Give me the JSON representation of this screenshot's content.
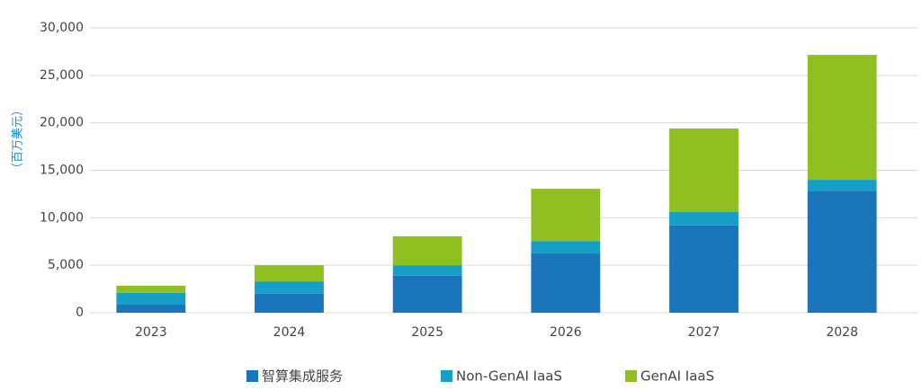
{
  "chart_data": {
    "type": "stacked_bar",
    "y_label": "（百万美元）",
    "categories": [
      "2023",
      "2024",
      "2025",
      "2026",
      "2027",
      "2028"
    ],
    "series": [
      {
        "name": "智算集成服务",
        "color": "#1b75bb",
        "values": [
          850,
          2000,
          3900,
          6250,
          9200,
          12850
        ]
      },
      {
        "name": "Non-GenAI IaaS",
        "color": "#159fc6",
        "values": [
          1250,
          1300,
          1100,
          1300,
          1400,
          1150
        ]
      },
      {
        "name": "GenAI IaaS",
        "color": "#8fbf21",
        "values": [
          750,
          1700,
          3050,
          5500,
          8800,
          13150
        ]
      }
    ],
    "ylim": [
      0,
      30000
    ],
    "yticks": [
      {
        "value": 0,
        "label": "0"
      },
      {
        "value": 5000,
        "label": "5,000"
      },
      {
        "value": 10000,
        "label": "10,000"
      },
      {
        "value": 15000,
        "label": "15,000"
      },
      {
        "value": 20000,
        "label": "20,000"
      },
      {
        "value": 25000,
        "label": "25,000"
      },
      {
        "value": 30000,
        "label": "30,000"
      }
    ],
    "grid": true,
    "legend": "bottom"
  }
}
